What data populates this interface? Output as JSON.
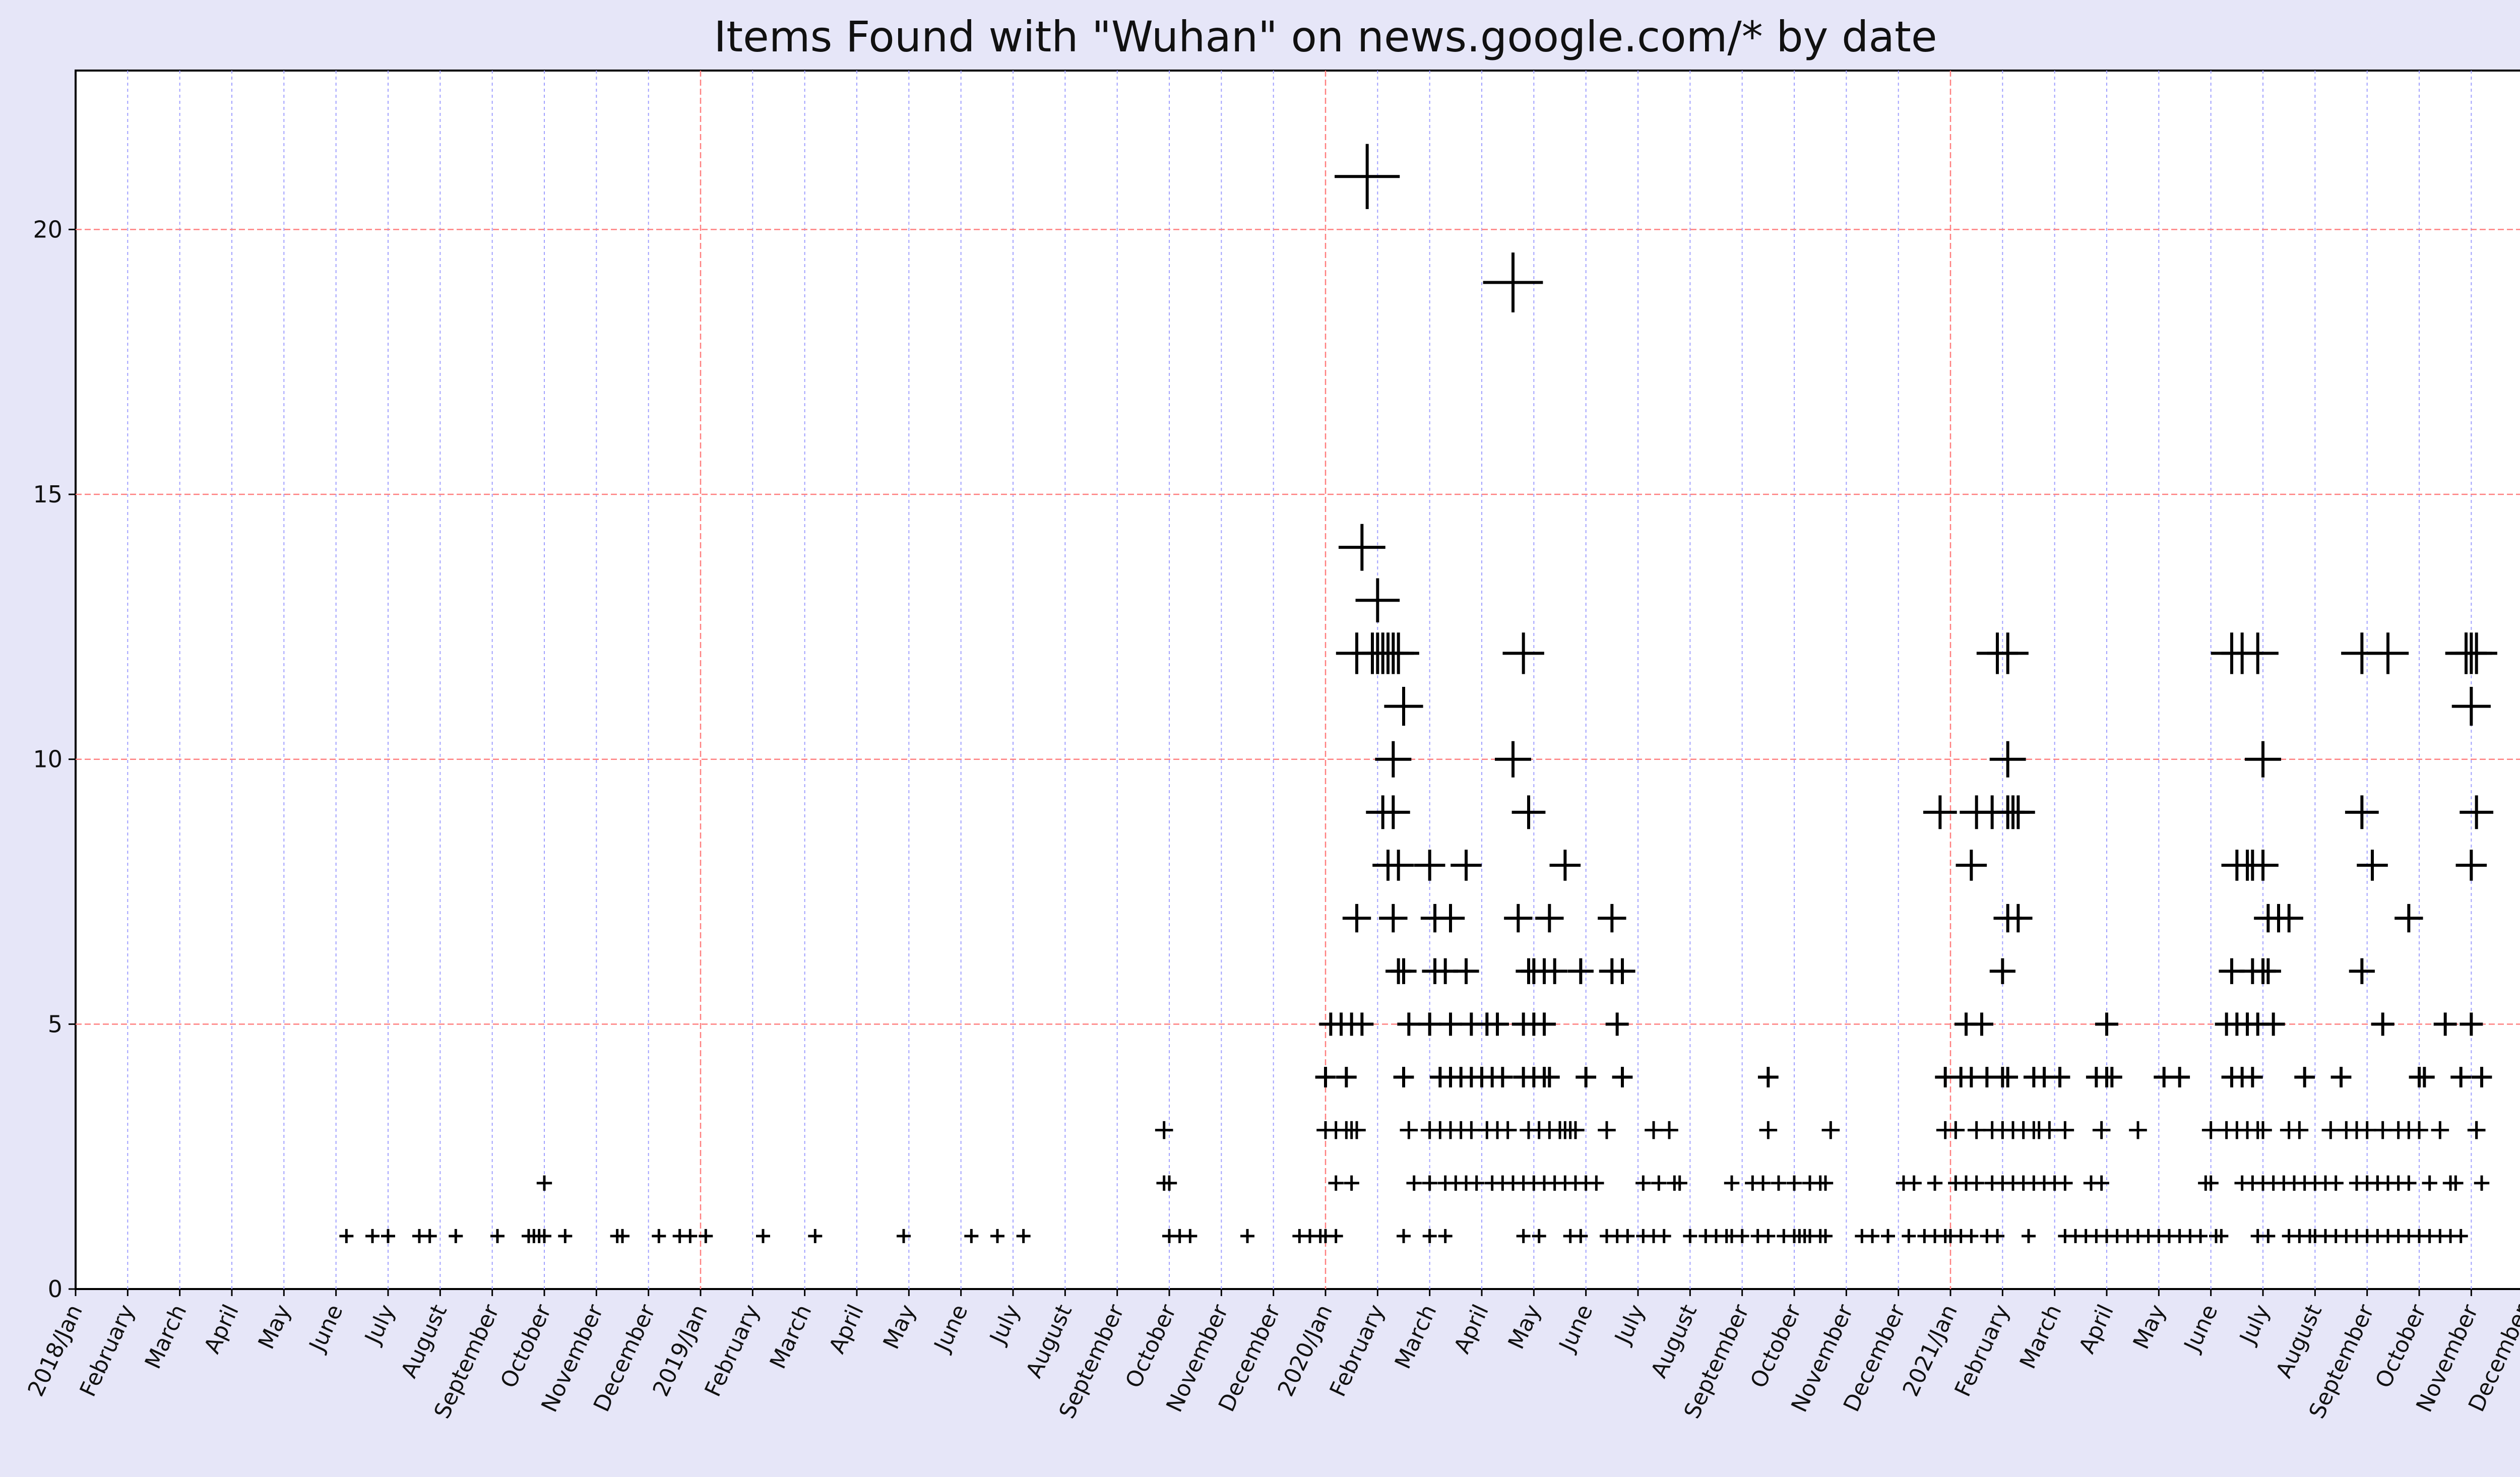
{
  "chart_data": {
    "type": "scatter",
    "title": "Items Found with \"Wuhan\" on news.google.com/* by date",
    "xlabel": "",
    "ylabel": "",
    "ylim": [
      0,
      23
    ],
    "xlim_months": [
      0,
      48
    ],
    "y_ticks": [
      0,
      5,
      10,
      15,
      20
    ],
    "major_grid_months": [
      12,
      24,
      36
    ],
    "x_tick_labels": [
      "2018/Jan",
      "February",
      "March",
      "April",
      "May",
      "June",
      "July",
      "August",
      "September",
      "October",
      "November",
      "December",
      "2019/Jan",
      "February",
      "March",
      "April",
      "May",
      "June",
      "July",
      "August",
      "September",
      "October",
      "November",
      "December",
      "2020/Jan",
      "February",
      "March",
      "April",
      "May",
      "June",
      "July",
      "August",
      "September",
      "October",
      "November",
      "December",
      "2021/Jan",
      "February",
      "March",
      "April",
      "May",
      "June",
      "July",
      "August",
      "September",
      "October",
      "November",
      "December"
    ],
    "marker": "+",
    "marker_size_scales_with_count": true,
    "colors": {
      "background": "#e6e6f8",
      "plot_bg": "#ffffff",
      "grid_major": "#ff8080",
      "grid_minor": "#a0a0ff",
      "marker": "#000000"
    },
    "points_month_count": [
      [
        5.2,
        1
      ],
      [
        5.7,
        1
      ],
      [
        6.0,
        1
      ],
      [
        6.6,
        1
      ],
      [
        6.8,
        1
      ],
      [
        7.3,
        1
      ],
      [
        8.1,
        1
      ],
      [
        8.7,
        1
      ],
      [
        8.8,
        1
      ],
      [
        8.9,
        1
      ],
      [
        9.0,
        1
      ],
      [
        9.0,
        2
      ],
      [
        9.4,
        1
      ],
      [
        10.4,
        1
      ],
      [
        10.5,
        1
      ],
      [
        11.2,
        1
      ],
      [
        11.6,
        1
      ],
      [
        11.8,
        1
      ],
      [
        12.1,
        1
      ],
      [
        13.2,
        1
      ],
      [
        14.2,
        1
      ],
      [
        15.9,
        1
      ],
      [
        17.2,
        1
      ],
      [
        17.7,
        1
      ],
      [
        18.2,
        1
      ],
      [
        20.9,
        3
      ],
      [
        20.9,
        2
      ],
      [
        21.0,
        2
      ],
      [
        21.0,
        1
      ],
      [
        21.2,
        1
      ],
      [
        21.4,
        1
      ],
      [
        22.5,
        1
      ],
      [
        23.5,
        1
      ],
      [
        23.7,
        1
      ],
      [
        23.9,
        1
      ],
      [
        24.0,
        1
      ],
      [
        24.2,
        1
      ],
      [
        24.0,
        4
      ],
      [
        24.4,
        4
      ],
      [
        24.0,
        3
      ],
      [
        24.2,
        3
      ],
      [
        24.4,
        3
      ],
      [
        24.5,
        3
      ],
      [
        24.6,
        3
      ],
      [
        24.2,
        2
      ],
      [
        24.5,
        2
      ],
      [
        24.1,
        5
      ],
      [
        24.3,
        5
      ],
      [
        24.5,
        5
      ],
      [
        24.7,
        5
      ],
      [
        24.6,
        7
      ],
      [
        24.6,
        12
      ],
      [
        24.9,
        12
      ],
      [
        25.0,
        12
      ],
      [
        25.1,
        12
      ],
      [
        25.2,
        12
      ],
      [
        25.3,
        12
      ],
      [
        24.7,
        14
      ],
      [
        24.8,
        21
      ],
      [
        25.0,
        13
      ],
      [
        25.4,
        12
      ],
      [
        25.5,
        11
      ],
      [
        25.3,
        10
      ],
      [
        25.1,
        9
      ],
      [
        25.3,
        9
      ],
      [
        25.2,
        8
      ],
      [
        25.4,
        8
      ],
      [
        25.3,
        7
      ],
      [
        25.4,
        6
      ],
      [
        25.5,
        6
      ],
      [
        25.6,
        5
      ],
      [
        25.5,
        4
      ],
      [
        25.6,
        3
      ],
      [
        25.7,
        2
      ],
      [
        25.5,
        1
      ],
      [
        26.0,
        8
      ],
      [
        26.1,
        7
      ],
      [
        26.4,
        7
      ],
      [
        26.3,
        6
      ],
      [
        26.1,
        6
      ],
      [
        26.7,
        6
      ],
      [
        26.0,
        5
      ],
      [
        26.4,
        5
      ],
      [
        26.8,
        5
      ],
      [
        26.2,
        4
      ],
      [
        26.4,
        4
      ],
      [
        26.6,
        4
      ],
      [
        26.8,
        4
      ],
      [
        26.0,
        3
      ],
      [
        26.2,
        3
      ],
      [
        26.4,
        3
      ],
      [
        26.6,
        3
      ],
      [
        26.8,
        3
      ],
      [
        26.0,
        2
      ],
      [
        26.3,
        2
      ],
      [
        26.5,
        2
      ],
      [
        26.7,
        2
      ],
      [
        26.9,
        2
      ],
      [
        26.0,
        1
      ],
      [
        26.3,
        1
      ],
      [
        26.7,
        8
      ],
      [
        27.0,
        4
      ],
      [
        27.2,
        4
      ],
      [
        27.4,
        4
      ],
      [
        27.1,
        3
      ],
      [
        27.3,
        3
      ],
      [
        27.5,
        3
      ],
      [
        27.2,
        2
      ],
      [
        27.4,
        2
      ],
      [
        27.6,
        2
      ],
      [
        27.1,
        5
      ],
      [
        27.3,
        5
      ],
      [
        27.6,
        10
      ],
      [
        27.6,
        19
      ],
      [
        27.8,
        12
      ],
      [
        27.9,
        9
      ],
      [
        27.7,
        7
      ],
      [
        27.9,
        6
      ],
      [
        28.0,
        6
      ],
      [
        28.2,
        6
      ],
      [
        27.8,
        5
      ],
      [
        28.0,
        5
      ],
      [
        28.2,
        5
      ],
      [
        27.8,
        4
      ],
      [
        28.0,
        4
      ],
      [
        28.2,
        4
      ],
      [
        28.3,
        4
      ],
      [
        27.9,
        3
      ],
      [
        28.1,
        3
      ],
      [
        28.3,
        3
      ],
      [
        27.8,
        2
      ],
      [
        28.0,
        2
      ],
      [
        28.2,
        2
      ],
      [
        28.4,
        2
      ],
      [
        27.8,
        1
      ],
      [
        28.1,
        1
      ],
      [
        28.3,
        7
      ],
      [
        28.4,
        6
      ],
      [
        28.5,
        3
      ],
      [
        28.6,
        3
      ],
      [
        28.7,
        3
      ],
      [
        28.8,
        3
      ],
      [
        28.6,
        2
      ],
      [
        28.8,
        2
      ],
      [
        29.0,
        2
      ],
      [
        28.6,
        8
      ],
      [
        28.9,
        6
      ],
      [
        29.0,
        4
      ],
      [
        28.7,
        1
      ],
      [
        28.9,
        1
      ],
      [
        29.2,
        2
      ],
      [
        29.4,
        3
      ],
      [
        29.5,
        7
      ],
      [
        29.5,
        6
      ],
      [
        29.7,
        6
      ],
      [
        29.6,
        5
      ],
      [
        29.7,
        4
      ],
      [
        29.4,
        1
      ],
      [
        29.6,
        1
      ],
      [
        29.8,
        1
      ],
      [
        30.1,
        2
      ],
      [
        30.3,
        3
      ],
      [
        30.4,
        2
      ],
      [
        30.6,
        3
      ],
      [
        30.7,
        2
      ],
      [
        30.8,
        2
      ],
      [
        30.1,
        1
      ],
      [
        30.3,
        1
      ],
      [
        30.5,
        1
      ],
      [
        31.0,
        1
      ],
      [
        31.3,
        1
      ],
      [
        31.5,
        1
      ],
      [
        31.7,
        1
      ],
      [
        31.8,
        1
      ],
      [
        32.0,
        1
      ],
      [
        31.8,
        2
      ],
      [
        32.2,
        2
      ],
      [
        32.4,
        2
      ],
      [
        32.5,
        3
      ],
      [
        32.5,
        4
      ],
      [
        32.3,
        1
      ],
      [
        32.5,
        1
      ],
      [
        32.7,
        2
      ],
      [
        32.8,
        1
      ],
      [
        33.0,
        1
      ],
      [
        33.1,
        1
      ],
      [
        33.2,
        1
      ],
      [
        33.3,
        1
      ],
      [
        33.0,
        2
      ],
      [
        33.3,
        2
      ],
      [
        33.5,
        2
      ],
      [
        33.6,
        2
      ],
      [
        33.5,
        1
      ],
      [
        33.6,
        1
      ],
      [
        33.7,
        3
      ],
      [
        34.3,
        1
      ],
      [
        34.5,
        1
      ],
      [
        34.8,
        1
      ],
      [
        35.1,
        2
      ],
      [
        35.3,
        2
      ],
      [
        35.2,
        1
      ],
      [
        35.5,
        1
      ],
      [
        35.7,
        1
      ],
      [
        35.9,
        1
      ],
      [
        36.0,
        1
      ],
      [
        36.2,
        1
      ],
      [
        36.4,
        1
      ],
      [
        36.1,
        2
      ],
      [
        36.3,
        2
      ],
      [
        36.5,
        2
      ],
      [
        35.7,
        2
      ],
      [
        35.9,
        3
      ],
      [
        36.1,
        3
      ],
      [
        36.5,
        3
      ],
      [
        35.9,
        4
      ],
      [
        36.2,
        4
      ],
      [
        36.4,
        4
      ],
      [
        35.8,
        9
      ],
      [
        36.4,
        8
      ],
      [
        36.3,
        5
      ],
      [
        36.6,
        5
      ],
      [
        36.7,
        1
      ],
      [
        36.9,
        1
      ],
      [
        36.8,
        2
      ],
      [
        37.0,
        2
      ],
      [
        37.2,
        2
      ],
      [
        37.4,
        2
      ],
      [
        36.8,
        3
      ],
      [
        37.0,
        3
      ],
      [
        37.2,
        3
      ],
      [
        37.4,
        3
      ],
      [
        37.6,
        3
      ],
      [
        36.7,
        4
      ],
      [
        37.0,
        4
      ],
      [
        37.1,
        4
      ],
      [
        36.5,
        9
      ],
      [
        36.8,
        9
      ],
      [
        37.1,
        9
      ],
      [
        37.2,
        9
      ],
      [
        37.3,
        9
      ],
      [
        37.1,
        10
      ],
      [
        36.9,
        12
      ],
      [
        37.1,
        12
      ],
      [
        37.0,
        6
      ],
      [
        37.1,
        7
      ],
      [
        37.3,
        7
      ],
      [
        37.5,
        1
      ],
      [
        37.6,
        2
      ],
      [
        37.8,
        2
      ],
      [
        38.0,
        2
      ],
      [
        38.2,
        2
      ],
      [
        37.7,
        3
      ],
      [
        37.9,
        3
      ],
      [
        37.6,
        4
      ],
      [
        37.8,
        4
      ],
      [
        38.2,
        3
      ],
      [
        38.1,
        4
      ],
      [
        38.2,
        1
      ],
      [
        38.4,
        1
      ],
      [
        38.6,
        1
      ],
      [
        38.8,
        1
      ],
      [
        38.7,
        2
      ],
      [
        38.9,
        2
      ],
      [
        39.0,
        1
      ],
      [
        38.8,
        4
      ],
      [
        38.9,
        3
      ],
      [
        39.0,
        4
      ],
      [
        39.1,
        4
      ],
      [
        39.0,
        5
      ],
      [
        39.2,
        1
      ],
      [
        39.4,
        1
      ],
      [
        39.6,
        3
      ],
      [
        39.6,
        1
      ],
      [
        39.8,
        1
      ],
      [
        40.0,
        1
      ],
      [
        40.2,
        1
      ],
      [
        40.4,
        1
      ],
      [
        40.1,
        4
      ],
      [
        40.4,
        4
      ],
      [
        40.6,
        1
      ],
      [
        40.8,
        1
      ],
      [
        40.9,
        2
      ],
      [
        41.0,
        2
      ],
      [
        41.0,
        3
      ],
      [
        41.1,
        1
      ],
      [
        41.2,
        1
      ],
      [
        41.3,
        3
      ],
      [
        41.4,
        4
      ],
      [
        41.5,
        3
      ],
      [
        41.6,
        4
      ],
      [
        41.7,
        3
      ],
      [
        41.8,
        4
      ],
      [
        41.9,
        3
      ],
      [
        42.0,
        3
      ],
      [
        41.6,
        2
      ],
      [
        41.8,
        2
      ],
      [
        42.0,
        2
      ],
      [
        41.9,
        1
      ],
      [
        42.1,
        1
      ],
      [
        41.8,
        6
      ],
      [
        42.0,
        6
      ],
      [
        42.1,
        6
      ],
      [
        41.5,
        8
      ],
      [
        41.7,
        8
      ],
      [
        41.8,
        8
      ],
      [
        42.0,
        8
      ],
      [
        41.3,
        5
      ],
      [
        41.5,
        5
      ],
      [
        41.7,
        5
      ],
      [
        41.4,
        6
      ],
      [
        41.7,
        5
      ],
      [
        41.9,
        5
      ],
      [
        41.4,
        12
      ],
      [
        41.6,
        12
      ],
      [
        41.9,
        12
      ],
      [
        42.0,
        10
      ],
      [
        42.2,
        5
      ],
      [
        42.2,
        2
      ],
      [
        42.4,
        2
      ],
      [
        42.1,
        7
      ],
      [
        42.3,
        7
      ],
      [
        42.5,
        7
      ],
      [
        42.5,
        1
      ],
      [
        42.7,
        1
      ],
      [
        42.9,
        1
      ],
      [
        42.5,
        3
      ],
      [
        42.7,
        3
      ],
      [
        42.8,
        4
      ],
      [
        42.6,
        2
      ],
      [
        42.8,
        2
      ],
      [
        43.0,
        2
      ],
      [
        43.2,
        2
      ],
      [
        43.4,
        2
      ],
      [
        43.3,
        3
      ],
      [
        43.6,
        3
      ],
      [
        43.5,
        4
      ],
      [
        43.0,
        1
      ],
      [
        43.2,
        1
      ],
      [
        43.4,
        1
      ],
      [
        43.6,
        1
      ],
      [
        43.8,
        1
      ],
      [
        44.0,
        1
      ],
      [
        43.8,
        2
      ],
      [
        44.0,
        2
      ],
      [
        44.2,
        2
      ],
      [
        43.8,
        3
      ],
      [
        44.0,
        3
      ],
      [
        43.9,
        6
      ],
      [
        44.1,
        8
      ],
      [
        43.9,
        9
      ],
      [
        43.9,
        12
      ],
      [
        44.4,
        12
      ],
      [
        44.2,
        1
      ],
      [
        44.4,
        1
      ],
      [
        44.6,
        1
      ],
      [
        44.8,
        1
      ],
      [
        45.0,
        1
      ],
      [
        44.3,
        3
      ],
      [
        44.6,
        3
      ],
      [
        44.3,
        5
      ],
      [
        44.2,
        2
      ],
      [
        44.4,
        2
      ],
      [
        44.6,
        2
      ],
      [
        44.8,
        2
      ],
      [
        44.8,
        3
      ],
      [
        45.0,
        3
      ],
      [
        45.2,
        2
      ],
      [
        45.4,
        3
      ],
      [
        45.6,
        2
      ],
      [
        45.5,
        5
      ],
      [
        45.7,
        2
      ],
      [
        45.0,
        4
      ],
      [
        45.1,
        4
      ],
      [
        45.8,
        4
      ],
      [
        44.8,
        7
      ],
      [
        45.2,
        1
      ],
      [
        45.4,
        1
      ],
      [
        45.6,
        1
      ],
      [
        45.8,
        1
      ],
      [
        46.2,
        2
      ],
      [
        46.1,
        3
      ],
      [
        46.2,
        4
      ],
      [
        46.0,
        5
      ],
      [
        45.9,
        12
      ],
      [
        46.0,
        8
      ],
      [
        46.1,
        9
      ],
      [
        46.0,
        11
      ],
      [
        46.1,
        12
      ],
      [
        46.0,
        12
      ],
      [
        45.9,
        12
      ],
      [
        46.1,
        3
      ]
    ]
  }
}
